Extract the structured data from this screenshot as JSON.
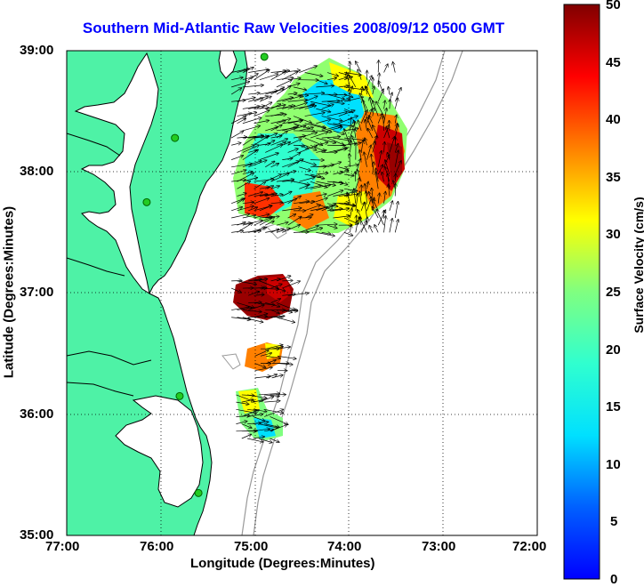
{
  "title": "Southern Mid-Atlantic Raw Velocities 2008/09/12 0500 GMT",
  "xlabel": "Longitude (Degrees:Minutes)",
  "ylabel": "Latitude (Degrees:Minutes)",
  "colorbar_label": "Surface Velocity (cm/s)",
  "x_ticks": [
    "77:00",
    "76:00",
    "75:00",
    "74:00",
    "73:00",
    "72:00"
  ],
  "y_ticks": [
    "39:00",
    "38:00",
    "37:00",
    "36:00",
    "35:00"
  ],
  "colorbar_ticks": [
    "50",
    "45",
    "40",
    "35",
    "30",
    "25",
    "20",
    "15",
    "10",
    "5",
    "0"
  ],
  "colors": {
    "land": "#4ef2a6",
    "land_outline": "#000000",
    "title": "#0000ff",
    "bathymetry": "#999999",
    "station": "#22cc22"
  },
  "chart_data": {
    "type": "heatmap",
    "title": "Southern Mid-Atlantic Raw Velocities 2008/09/12 0500 GMT",
    "xlabel": "Longitude (Degrees:Minutes)",
    "ylabel": "Latitude (Degrees:Minutes)",
    "xlim": [
      -77,
      -72
    ],
    "ylim": [
      35,
      39
    ],
    "colorbar": {
      "label": "Surface Velocity (cm/s)",
      "range": [
        0,
        50
      ],
      "colormap": "jet"
    },
    "grid": true,
    "regions": [
      {
        "lon_range": [
          -75.25,
          -73.5
        ],
        "lat_range": [
          37.5,
          38.85
        ],
        "velocity_range_cm_s": [
          5,
          50
        ]
      },
      {
        "lon_range": [
          -75.25,
          -74.6
        ],
        "lat_range": [
          36.8,
          37.15
        ],
        "velocity_range_cm_s": [
          40,
          50
        ]
      },
      {
        "lon_range": [
          -75.0,
          -74.7
        ],
        "lat_range": [
          36.3,
          36.55
        ],
        "velocity_range_cm_s": [
          20,
          35
        ]
      },
      {
        "lon_range": [
          -75.2,
          -74.8
        ],
        "lat_range": [
          35.8,
          36.2
        ],
        "velocity_range_cm_s": [
          10,
          25
        ]
      }
    ],
    "stations": [
      {
        "lon": -74.9,
        "lat": 38.95
      },
      {
        "lon": -75.85,
        "lat": 38.28
      },
      {
        "lon": -76.15,
        "lat": 37.75
      },
      {
        "lon": -75.8,
        "lat": 36.15
      },
      {
        "lon": -75.6,
        "lat": 35.35
      }
    ]
  }
}
